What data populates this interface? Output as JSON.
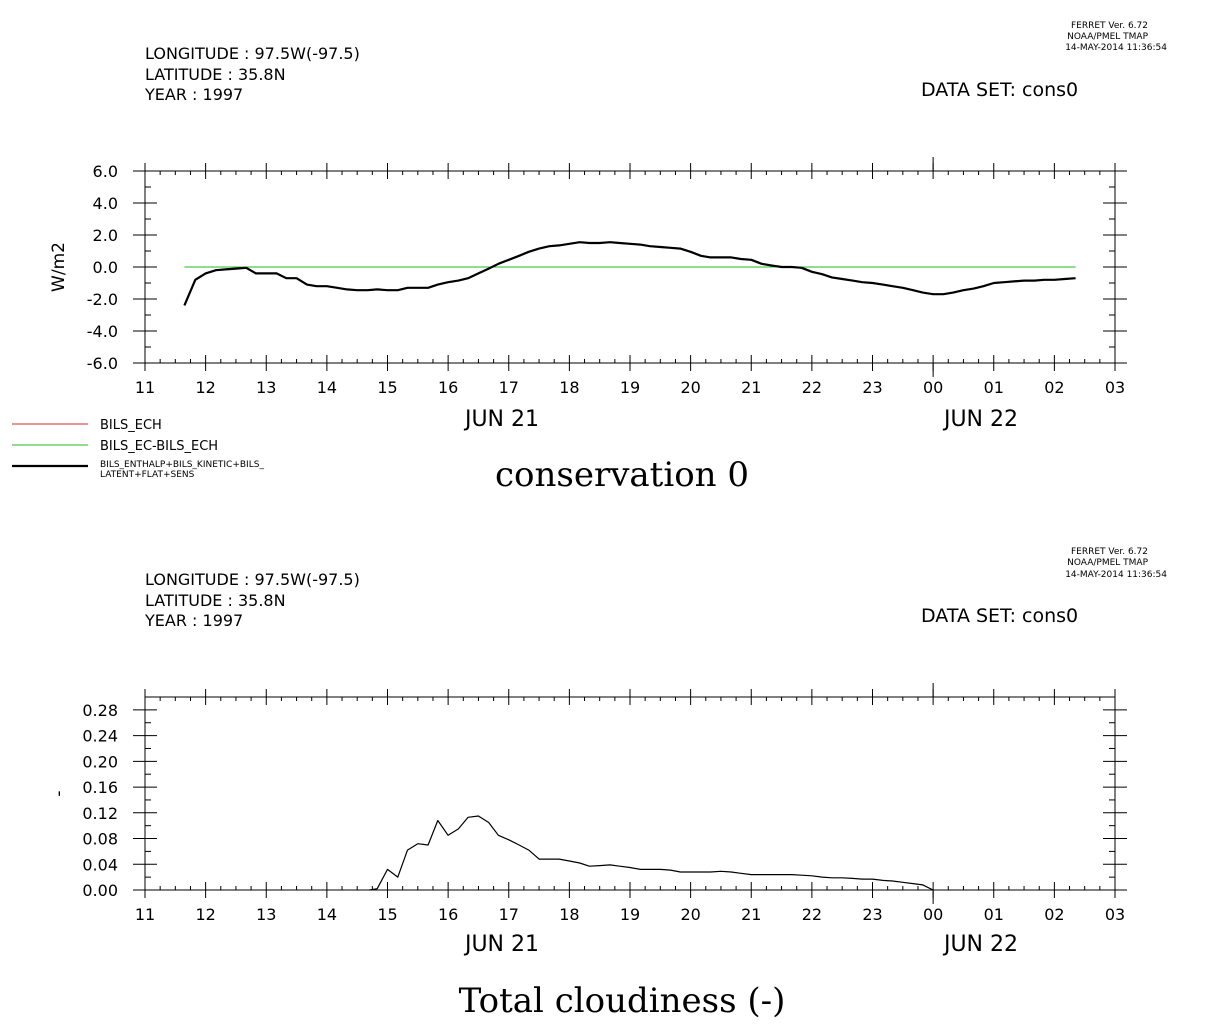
{
  "charts": [
    {
      "header": {
        "longitude": "LONGITUDE : 97.5W(-97.5)",
        "latitude": "LATITUDE : 35.8N",
        "year": "YEAR : 1997",
        "ferret_version": "FERRET Ver. 6.72",
        "ferret_org": "NOAA/PMEL TMAP",
        "ferret_date": "14-MAY-2014 11:36:54",
        "dataset": "DATA SET: cons0"
      },
      "date_labels": [
        "JUN 21",
        "JUN 22"
      ],
      "legend": [
        {
          "label": "BILS_ECH",
          "color": "#d62728"
        },
        {
          "label": "BILS_EC-BILS_ECH",
          "color": "#22bb22"
        },
        {
          "label": "BILS_ENTHALP+BILS_KINETIC+BILS_",
          "label2": "LATENT+FLAT+SENS",
          "color": "#000000"
        }
      ]
    },
    {
      "header": {
        "longitude": "LONGITUDE : 97.5W(-97.5)",
        "latitude": "LATITUDE : 35.8N",
        "year": "YEAR : 1997",
        "ferret_version": "FERRET Ver. 6.72",
        "ferret_org": "NOAA/PMEL TMAP",
        "ferret_date": "14-MAY-2014 11:36:54",
        "dataset": "DATA SET: cons0"
      },
      "date_labels": [
        "JUN 21",
        "JUN 22"
      ],
      "legend": []
    }
  ],
  "chart_data": [
    {
      "type": "line",
      "title": "conservation 0",
      "ylabel": "W/m2",
      "xlabel": "",
      "xlim": [
        11,
        27
      ],
      "ylim": [
        -6,
        6
      ],
      "x_ticks": [
        "11",
        "12",
        "13",
        "14",
        "15",
        "16",
        "17",
        "18",
        "19",
        "20",
        "21",
        "22",
        "23",
        "00",
        "01",
        "02",
        "03"
      ],
      "y_ticks": [
        "6.0",
        "4.0",
        "2.0",
        "0.0",
        "-2.0",
        "-4.0",
        "-6.0"
      ],
      "y_tick_values": [
        6,
        4,
        2,
        0,
        -2,
        -4,
        -6
      ],
      "series": [
        {
          "name": "BILS_EC-BILS_ECH",
          "color": "#22bb22",
          "stroke": 1,
          "x": [
            11.65,
            26.35
          ],
          "y": [
            0,
            0
          ]
        },
        {
          "name": "BILS_ENTHALP+BILS_KINETIC+BILS_ LATENT+FLAT+SENS",
          "color": "#000000",
          "stroke": 2.2,
          "x": [
            11.65,
            11.83,
            12.0,
            12.17,
            12.33,
            12.5,
            12.67,
            12.83,
            13.0,
            13.17,
            13.33,
            13.5,
            13.67,
            13.83,
            14.0,
            14.17,
            14.33,
            14.5,
            14.67,
            14.83,
            15.0,
            15.17,
            15.33,
            15.5,
            15.67,
            15.83,
            16.0,
            16.17,
            16.33,
            16.5,
            16.67,
            16.83,
            17.0,
            17.17,
            17.33,
            17.5,
            17.67,
            17.83,
            18.0,
            18.17,
            18.33,
            18.5,
            18.67,
            18.83,
            19.0,
            19.17,
            19.33,
            19.5,
            19.67,
            19.83,
            20.0,
            20.17,
            20.33,
            20.5,
            20.67,
            20.83,
            21.0,
            21.17,
            21.33,
            21.5,
            21.67,
            21.83,
            22.0,
            22.17,
            22.33,
            22.5,
            22.67,
            22.83,
            23.0,
            23.17,
            23.33,
            23.5,
            23.67,
            23.83,
            24.0,
            24.17,
            24.33,
            24.5,
            24.67,
            24.83,
            25.0,
            25.17,
            25.33,
            25.5,
            25.67,
            25.83,
            26.0,
            26.17,
            26.35
          ],
          "y": [
            -2.4,
            -0.8,
            -0.4,
            -0.2,
            -0.15,
            -0.1,
            -0.05,
            -0.4,
            -0.4,
            -0.4,
            -0.7,
            -0.7,
            -1.1,
            -1.2,
            -1.2,
            -1.3,
            -1.4,
            -1.45,
            -1.45,
            -1.4,
            -1.45,
            -1.45,
            -1.3,
            -1.3,
            -1.3,
            -1.1,
            -0.95,
            -0.85,
            -0.7,
            -0.4,
            -0.1,
            0.2,
            0.45,
            0.7,
            0.95,
            1.15,
            1.3,
            1.35,
            1.45,
            1.55,
            1.5,
            1.5,
            1.55,
            1.5,
            1.45,
            1.4,
            1.3,
            1.25,
            1.2,
            1.15,
            0.95,
            0.7,
            0.6,
            0.6,
            0.6,
            0.5,
            0.45,
            0.2,
            0.1,
            0.0,
            0.0,
            -0.05,
            -0.3,
            -0.45,
            -0.65,
            -0.75,
            -0.85,
            -0.95,
            -1.0,
            -1.1,
            -1.2,
            -1.3,
            -1.45,
            -1.6,
            -1.7,
            -1.7,
            -1.6,
            -1.45,
            -1.35,
            -1.2,
            -1.0,
            -0.95,
            -0.9,
            -0.85,
            -0.85,
            -0.8,
            -0.8,
            -0.75,
            -0.7
          ]
        }
      ]
    },
    {
      "type": "line",
      "title": "Total cloudiness (-)",
      "ylabel": "-",
      "xlabel": "",
      "xlim": [
        11,
        27
      ],
      "ylim": [
        0,
        0.3
      ],
      "x_ticks": [
        "11",
        "12",
        "13",
        "14",
        "15",
        "16",
        "17",
        "18",
        "19",
        "20",
        "21",
        "22",
        "23",
        "00",
        "01",
        "02",
        "03"
      ],
      "y_ticks": [
        "0.28",
        "0.24",
        "0.20",
        "0.16",
        "0.12",
        "0.08",
        "0.04",
        "0.00"
      ],
      "y_tick_values": [
        0.28,
        0.24,
        0.2,
        0.16,
        0.12,
        0.08,
        0.04,
        0.0
      ],
      "series": [
        {
          "color": "#000000",
          "stroke": 1.2,
          "x": [
            14.7,
            14.83,
            15.0,
            15.17,
            15.33,
            15.5,
            15.67,
            15.83,
            16.0,
            16.17,
            16.33,
            16.5,
            16.67,
            16.83,
            17.0,
            17.17,
            17.33,
            17.5,
            17.67,
            17.83,
            18.0,
            18.17,
            18.33,
            18.5,
            18.67,
            18.83,
            19.0,
            19.17,
            19.33,
            19.5,
            19.67,
            19.83,
            20.0,
            20.17,
            20.33,
            20.5,
            20.67,
            20.83,
            21.0,
            21.17,
            21.33,
            21.5,
            21.67,
            21.83,
            22.0,
            22.17,
            22.33,
            22.5,
            22.67,
            22.83,
            23.0,
            23.17,
            23.33,
            23.5,
            23.67,
            23.83,
            24.0
          ],
          "y": [
            0.0,
            0.002,
            0.032,
            0.02,
            0.062,
            0.072,
            0.07,
            0.108,
            0.085,
            0.095,
            0.113,
            0.115,
            0.105,
            0.085,
            0.078,
            0.07,
            0.062,
            0.048,
            0.048,
            0.048,
            0.045,
            0.042,
            0.037,
            0.038,
            0.039,
            0.037,
            0.035,
            0.032,
            0.032,
            0.032,
            0.031,
            0.028,
            0.028,
            0.028,
            0.028,
            0.029,
            0.028,
            0.026,
            0.024,
            0.024,
            0.024,
            0.024,
            0.024,
            0.023,
            0.022,
            0.02,
            0.019,
            0.019,
            0.018,
            0.017,
            0.017,
            0.015,
            0.014,
            0.012,
            0.01,
            0.008,
            0.0
          ]
        }
      ]
    }
  ]
}
